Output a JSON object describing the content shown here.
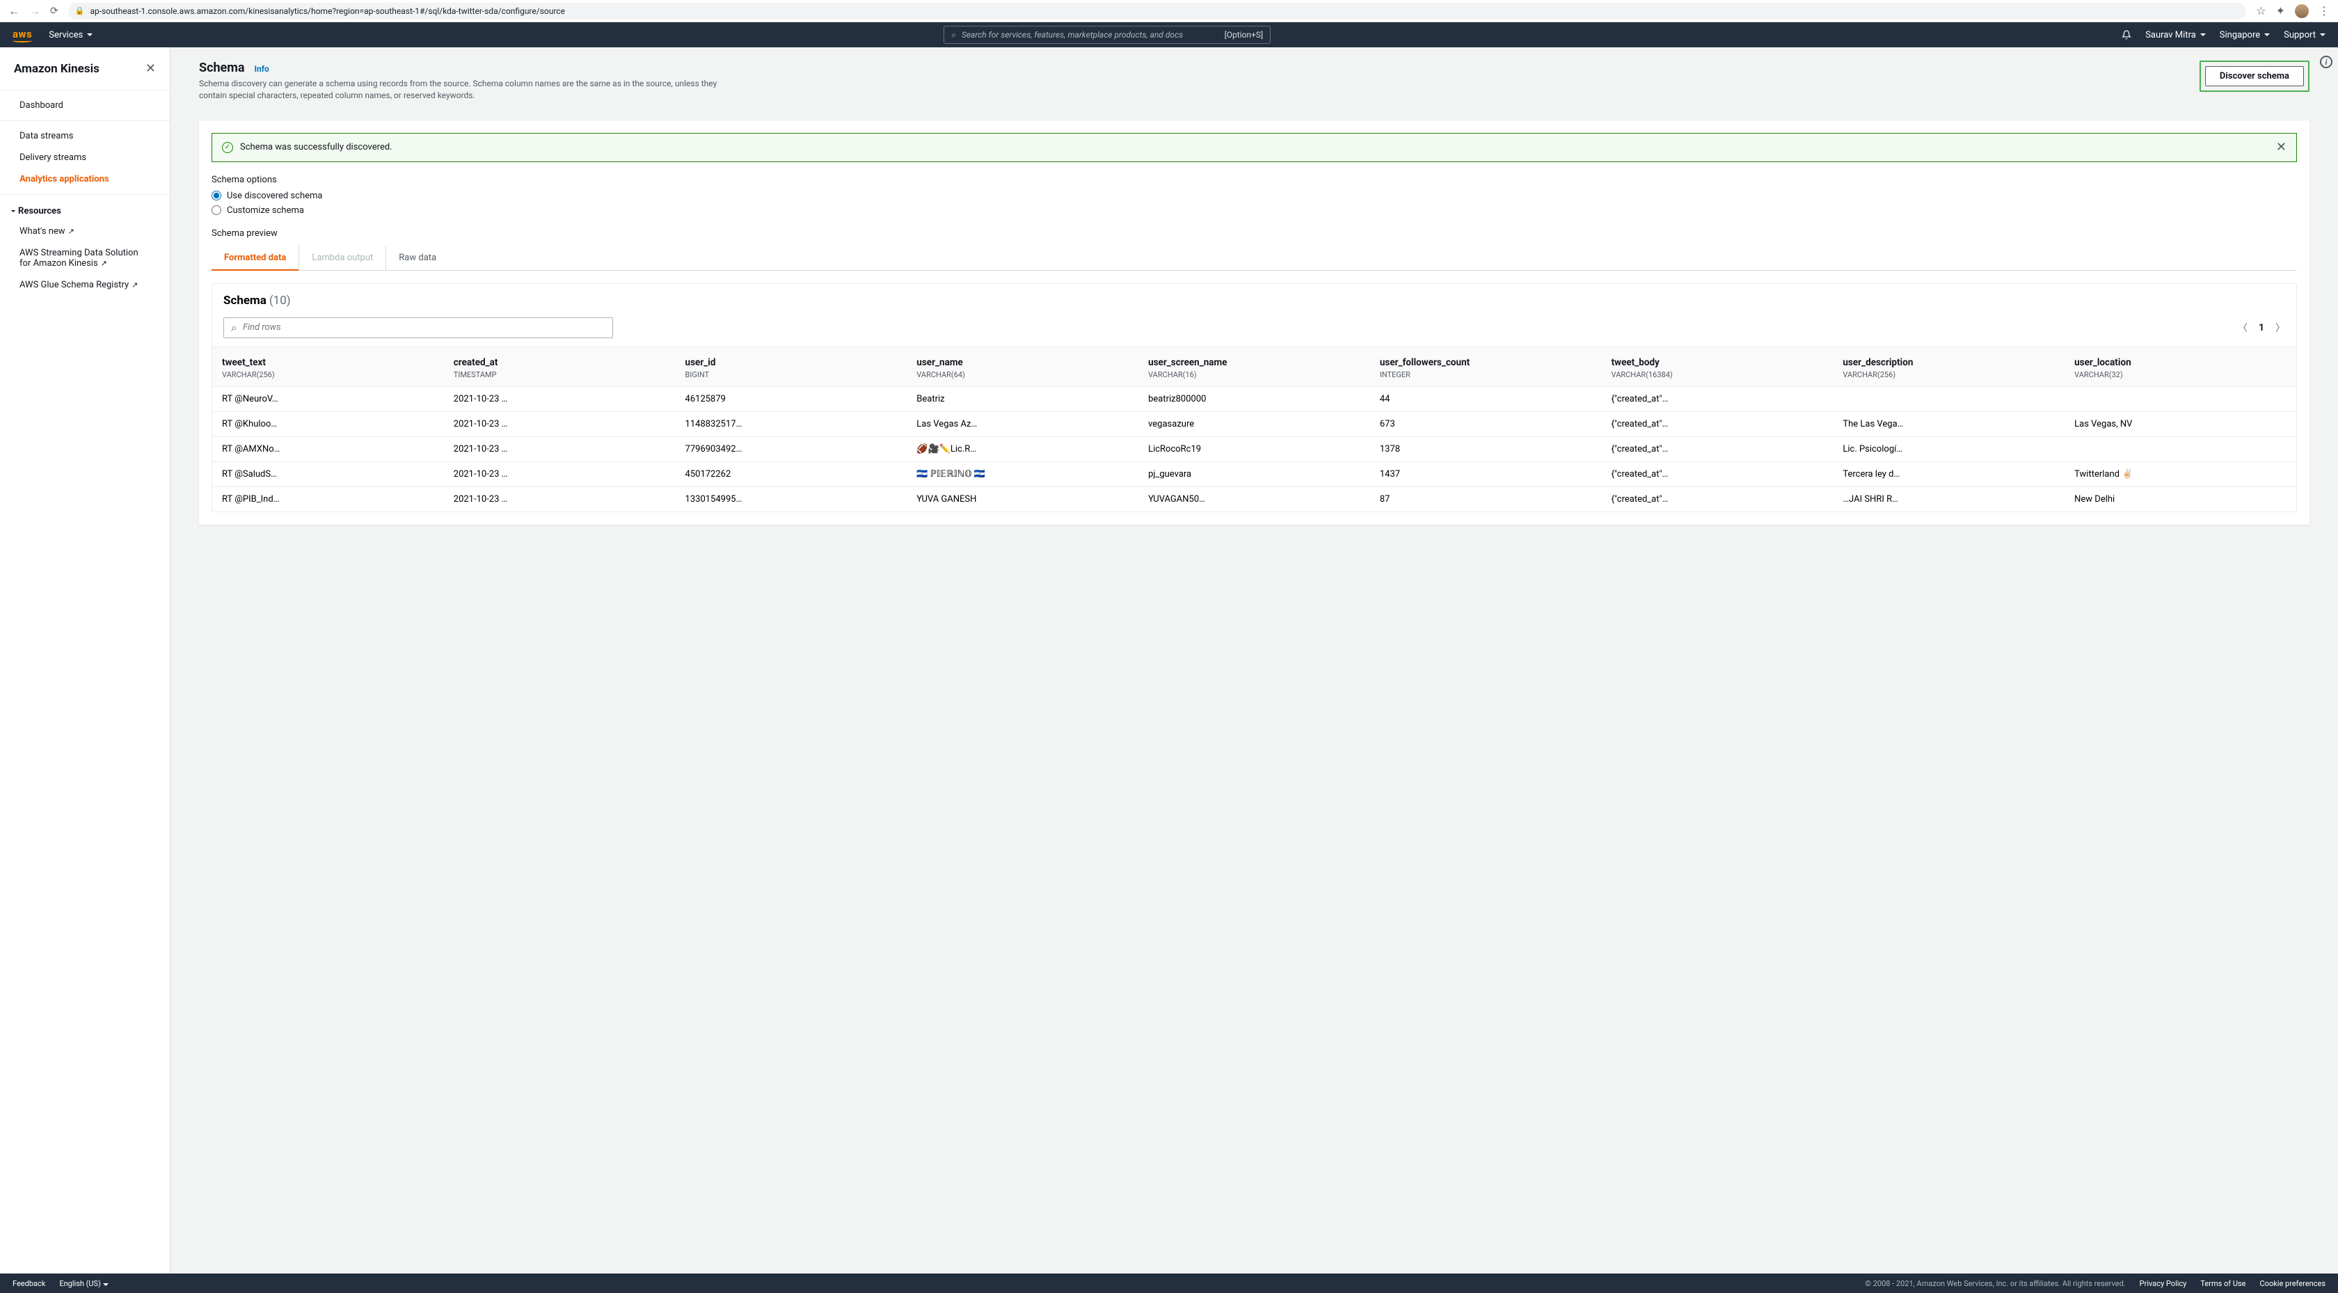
{
  "browser": {
    "url": "ap-southeast-1.console.aws.amazon.com/kinesisanalytics/home?region=ap-southeast-1#/sql/kda-twitter-sda/configure/source"
  },
  "nav": {
    "logo": "aws",
    "services": "Services",
    "search_placeholder": "Search for services, features, marketplace products, and docs",
    "search_shortcut": "[Option+S]",
    "user": "Saurav Mitra",
    "region": "Singapore",
    "support": "Support"
  },
  "sidebar": {
    "title": "Amazon Kinesis",
    "items": {
      "dashboard": "Dashboard",
      "data_streams": "Data streams",
      "delivery_streams": "Delivery streams",
      "analytics": "Analytics applications"
    },
    "resources_title": "Resources",
    "resources": {
      "whats_new": "What's new",
      "streaming": "AWS Streaming Data Solution for Amazon Kinesis",
      "glue": "AWS Glue Schema Registry"
    }
  },
  "header": {
    "title": "Schema",
    "info": "Info",
    "desc": "Schema discovery can generate a schema using records from the source. Schema column names are the same as in the source, unless they contain special characters, repeated column names, or reserved keywords.",
    "discover_btn": "Discover schema"
  },
  "banner": {
    "msg": "Schema was successfully discovered."
  },
  "options": {
    "title": "Schema options",
    "use": "Use discovered schema",
    "customize": "Customize schema"
  },
  "preview": {
    "title": "Schema preview",
    "tabs": {
      "formatted": "Formatted data",
      "lambda": "Lambda output",
      "raw": "Raw data"
    }
  },
  "table": {
    "title": "Schema",
    "count": "(10)",
    "find_placeholder": "Find rows",
    "page": "1",
    "columns": [
      {
        "name": "tweet_text",
        "type": "VARCHAR(256)"
      },
      {
        "name": "created_at",
        "type": "TIMESTAMP"
      },
      {
        "name": "user_id",
        "type": "BIGINT"
      },
      {
        "name": "user_name",
        "type": "VARCHAR(64)"
      },
      {
        "name": "user_screen_name",
        "type": "VARCHAR(16)"
      },
      {
        "name": "user_followers_count",
        "type": "INTEGER"
      },
      {
        "name": "tweet_body",
        "type": "VARCHAR(16384)"
      },
      {
        "name": "user_description",
        "type": "VARCHAR(256)"
      },
      {
        "name": "user_location",
        "type": "VARCHAR(32)"
      }
    ],
    "rows": [
      [
        "RT @NeuroV…",
        "2021-10-23 …",
        "46125879",
        "Beatriz",
        "beatriz800000",
        "44",
        "{\"created_at\"…",
        "",
        ""
      ],
      [
        "RT @Khuloo…",
        "2021-10-23 …",
        "1148832517…",
        "Las Vegas Az…",
        "vegasazure",
        "673",
        "{\"created_at\"…",
        "The Las Vega…",
        "Las Vegas, NV"
      ],
      [
        "RT @AMXNo…",
        "2021-10-23 …",
        "7796903492…",
        "🏈🎥✏️Lic.R…",
        "LicRocoRc19",
        "1378",
        "{\"created_at\"…",
        "Lic. Psicologí…",
        ""
      ],
      [
        "RT @SaludS…",
        "2021-10-23 …",
        "450172262",
        "🇸🇻 ℙ𝕀𝔼ℝ𝕀ℕ𝕆 🇸🇻",
        "pj_guevara",
        "1437",
        "{\"created_at\"…",
        "Tercera ley d…",
        "Twitterland ✌🏻"
      ],
      [
        "RT @PIB_Ind…",
        "2021-10-23 …",
        "1330154995…",
        "YUVA GANESH",
        "YUVAGAN50…",
        "87",
        "{\"created_at\"…",
        "…JAI SHRI R…",
        "New Delhi"
      ]
    ]
  },
  "footer": {
    "feedback": "Feedback",
    "lang": "English (US)",
    "copyright": "© 2008 - 2021, Amazon Web Services, Inc. or its affiliates. All rights reserved.",
    "privacy": "Privacy Policy",
    "terms": "Terms of Use",
    "cookies": "Cookie preferences"
  }
}
